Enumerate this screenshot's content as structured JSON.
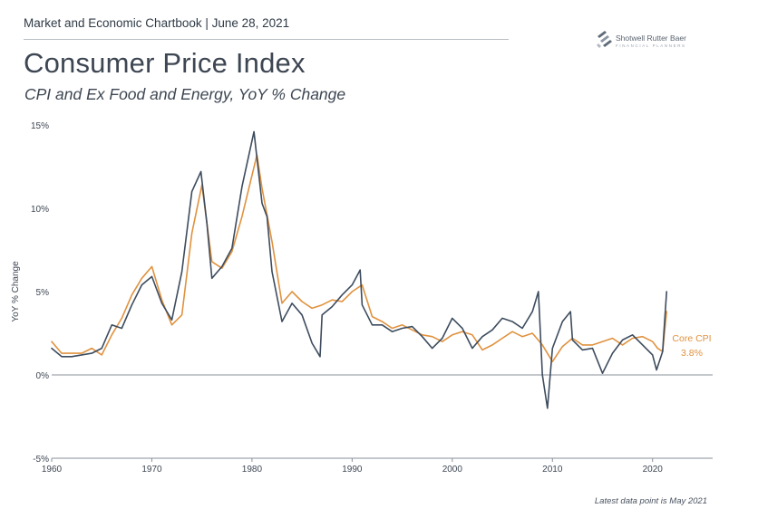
{
  "header": {
    "chartbook": "Market and Economic Chartbook | June 28, 2021",
    "title": "Consumer Price Index",
    "subtitle": "CPI and Ex Food and Energy, YoY % Change"
  },
  "logo": {
    "name": "Shotwell Rutter Baer",
    "tagline": "FINANCIAL PLANNERS"
  },
  "footnote": "Latest data point is May 2021",
  "colors": {
    "cpi": "#3d4c5e",
    "core": "#e0923f",
    "zero_line": "#8a9098"
  },
  "chart_data": {
    "type": "line",
    "ylabel": "YoY % Change",
    "xlabel": "",
    "xlim": [
      1960,
      2026
    ],
    "ylim": [
      -5,
      15
    ],
    "x_ticks": [
      "1960",
      "1970",
      "1980",
      "1990",
      "2000",
      "2010",
      "2020"
    ],
    "y_ticks": [
      "15%",
      "10%",
      "5%",
      "0%",
      "-5%"
    ],
    "annotation": {
      "label": "Core CPI",
      "value": "3.8%"
    },
    "series": [
      {
        "id": "cpi",
        "x": [
          1960,
          1961,
          1962,
          1963,
          1964,
          1965,
          1966,
          1967,
          1968,
          1969,
          1970,
          1971,
          1972,
          1973,
          1974,
          1974.9,
          1975.5,
          1976,
          1977,
          1978,
          1979,
          1980.2,
          1981,
          1981.5,
          1982,
          1983,
          1984,
          1985,
          1986,
          1986.8,
          1987,
          1988,
          1989,
          1990,
          1990.8,
          1991,
          1992,
          1993,
          1994,
          1995,
          1996,
          1997,
          1998,
          1999,
          2000,
          2001,
          2002,
          2003,
          2004,
          2005,
          2006,
          2007,
          2008,
          2008.6,
          2009,
          2009.5,
          2010,
          2011,
          2011.8,
          2012,
          2013,
          2014,
          2015,
          2016,
          2017,
          2018,
          2019,
          2020,
          2020.4,
          2021,
          2021.4
        ],
        "y": [
          1.6,
          1.1,
          1.1,
          1.2,
          1.3,
          1.6,
          3.0,
          2.8,
          4.2,
          5.4,
          5.9,
          4.3,
          3.3,
          6.2,
          11.0,
          12.2,
          9.1,
          5.8,
          6.5,
          7.6,
          11.3,
          14.6,
          10.3,
          9.5,
          6.2,
          3.2,
          4.3,
          3.6,
          1.9,
          1.1,
          3.6,
          4.1,
          4.8,
          5.4,
          6.3,
          4.2,
          3.0,
          3.0,
          2.6,
          2.8,
          2.9,
          2.3,
          1.6,
          2.2,
          3.4,
          2.8,
          1.6,
          2.3,
          2.7,
          3.4,
          3.2,
          2.8,
          3.8,
          5.0,
          0.0,
          -2.0,
          1.6,
          3.2,
          3.8,
          2.1,
          1.5,
          1.6,
          0.1,
          1.3,
          2.1,
          2.4,
          1.8,
          1.2,
          0.3,
          1.4,
          5.0
        ]
      },
      {
        "id": "core",
        "x": [
          1960,
          1961,
          1962,
          1963,
          1964,
          1965,
          1966,
          1967,
          1968,
          1969,
          1970,
          1971,
          1972,
          1973,
          1974,
          1975,
          1976,
          1977,
          1978,
          1979,
          1980.5,
          1981,
          1982,
          1983,
          1984,
          1985,
          1986,
          1987,
          1988,
          1989,
          1990,
          1991,
          1992,
          1993,
          1994,
          1995,
          1996,
          1997,
          1998,
          1999,
          2000,
          2001,
          2002,
          2003,
          2004,
          2005,
          2006,
          2007,
          2008,
          2009,
          2010,
          2011,
          2012,
          2013,
          2014,
          2015,
          2016,
          2017,
          2018,
          2019,
          2020,
          2020.5,
          2021,
          2021.4
        ],
        "y": [
          2.0,
          1.3,
          1.3,
          1.3,
          1.6,
          1.2,
          2.4,
          3.4,
          4.8,
          5.8,
          6.5,
          4.5,
          3.0,
          3.6,
          8.5,
          11.4,
          6.8,
          6.4,
          7.4,
          9.5,
          13.2,
          11.2,
          8.0,
          4.3,
          5.0,
          4.4,
          4.0,
          4.2,
          4.5,
          4.4,
          5.0,
          5.4,
          3.5,
          3.2,
          2.8,
          3.0,
          2.7,
          2.4,
          2.3,
          2.0,
          2.4,
          2.6,
          2.4,
          1.5,
          1.8,
          2.2,
          2.6,
          2.3,
          2.5,
          1.8,
          0.8,
          1.7,
          2.2,
          1.8,
          1.8,
          2.0,
          2.2,
          1.8,
          2.2,
          2.3,
          2.0,
          1.6,
          1.4,
          3.8
        ]
      }
    ]
  }
}
